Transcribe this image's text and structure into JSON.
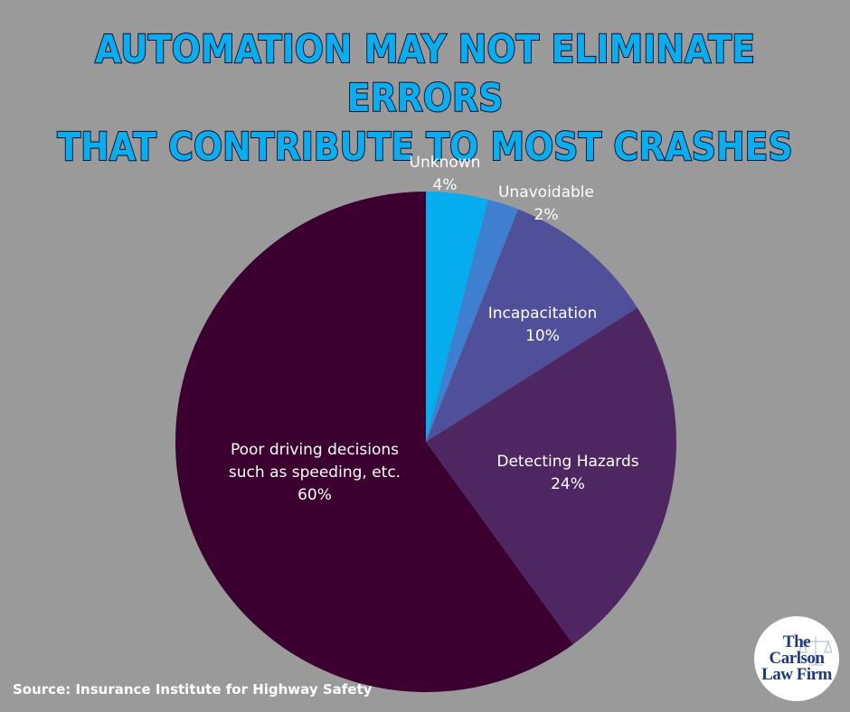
{
  "title_lines": [
    "AUTOMATION MAY NOT ELIMINATE ERRORS",
    "THAT CONTRIBUTE TO MOST CRASHES"
  ],
  "source": "Source: Insurance Institute for Highway Safety",
  "logo": {
    "line1": "The",
    "line2": "Carlson",
    "line3": "Law Firm"
  },
  "colors": {
    "background": "#9a9a9a",
    "title_fill": "#0aaef0",
    "title_outline": "#0c0c2a"
  },
  "chart_data": {
    "type": "pie",
    "title": "AUTOMATION MAY NOT ELIMINATE ERRORS THAT CONTRIBUTE TO MOST CRASHES",
    "start": "12 o'clock",
    "direction": "clockwise",
    "slices": [
      {
        "label_lines": [
          "Unknown"
        ],
        "value": 4,
        "value_label": "4%",
        "color": "#05acee"
      },
      {
        "label_lines": [
          "Unavoidable"
        ],
        "value": 2,
        "value_label": "2%",
        "color": "#3f7fd0"
      },
      {
        "label_lines": [
          "Incapacitation"
        ],
        "value": 10,
        "value_label": "10%",
        "color": "#4f4f9a"
      },
      {
        "label_lines": [
          "Detecting Hazards"
        ],
        "value": 24,
        "value_label": "24%",
        "color": "#4e2662"
      },
      {
        "label_lines": [
          "Poor driving decisions",
          "such as speeding, etc."
        ],
        "value": 60,
        "value_label": "60%",
        "color": "#3b0030"
      }
    ]
  }
}
